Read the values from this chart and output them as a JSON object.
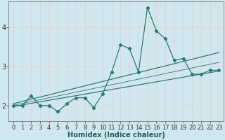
{
  "title": "",
  "xlabel": "Humidex (Indice chaleur)",
  "bg_color": "#cfe8f0",
  "line_color": "#2a7a72",
  "grid_color": "#e8d0d0",
  "xlim": [
    -0.5,
    23.5
  ],
  "ylim": [
    1.6,
    4.65
  ],
  "x_data": [
    0,
    1,
    2,
    3,
    4,
    5,
    6,
    7,
    8,
    9,
    10,
    11,
    12,
    13,
    14,
    15,
    16,
    17,
    18,
    19,
    20,
    21,
    22,
    23
  ],
  "y_data": [
    2.0,
    2.0,
    2.25,
    2.0,
    2.0,
    1.85,
    2.05,
    2.2,
    2.2,
    1.95,
    2.3,
    2.85,
    3.55,
    3.45,
    2.85,
    4.5,
    3.9,
    3.7,
    3.15,
    3.2,
    2.8,
    2.8,
    2.9,
    2.9
  ],
  "upper_line_x": [
    0,
    23
  ],
  "upper_line_y": [
    2.05,
    3.35
  ],
  "lower_line_x": [
    0,
    23
  ],
  "lower_line_y": [
    1.98,
    2.88
  ],
  "mid_line_x": [
    0,
    23
  ],
  "mid_line_y": [
    2.01,
    3.1
  ],
  "xtick_vals": [
    0,
    1,
    2,
    3,
    4,
    5,
    6,
    7,
    8,
    9,
    10,
    11,
    12,
    13,
    14,
    15,
    16,
    17,
    18,
    19,
    20,
    21,
    22,
    23
  ],
  "ytick_vals": [
    2,
    3,
    4
  ],
  "tick_font_size": 6,
  "label_font_size": 7
}
